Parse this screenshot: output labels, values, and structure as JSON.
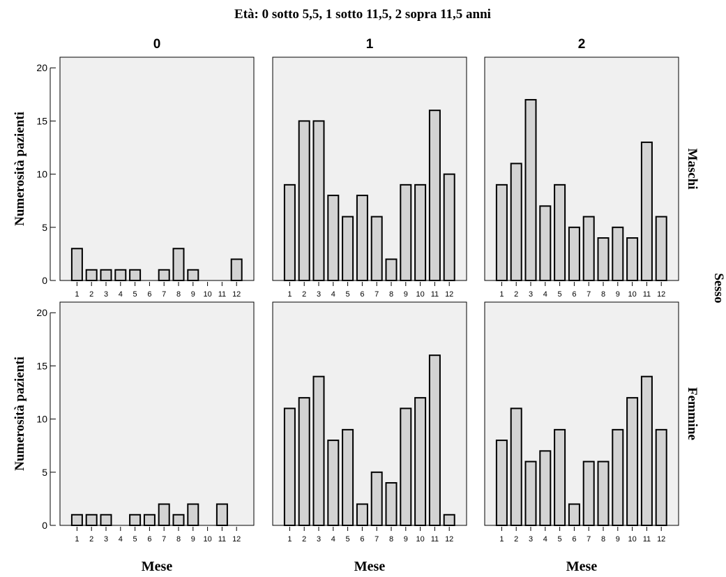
{
  "chart_data": {
    "type": "bar",
    "title": "Età: 0 sotto 5,5, 1 sotto 11,5, 2 sopra 11,5 anni",
    "xlabel": "Mese",
    "ylabel": "Numerosità pazienti",
    "row_facet_title": "Sesso",
    "ylim": [
      0,
      21
    ],
    "yticks": [
      0,
      5,
      10,
      15,
      20
    ],
    "categories": [
      "1",
      "2",
      "3",
      "4",
      "5",
      "6",
      "7",
      "8",
      "9",
      "10",
      "11",
      "12"
    ],
    "columns": [
      "0",
      "1",
      "2"
    ],
    "rows": [
      "Maschi",
      "Femmine"
    ],
    "bar_color": "#d3d3d3",
    "panel_background": "#f0f0f0",
    "panels": [
      {
        "row": "Maschi",
        "col": "0",
        "values": [
          3,
          1,
          1,
          1,
          1,
          0,
          1,
          3,
          1,
          0,
          0,
          2
        ]
      },
      {
        "row": "Maschi",
        "col": "1",
        "values": [
          9,
          15,
          15,
          8,
          6,
          8,
          6,
          2,
          9,
          9,
          16,
          10
        ]
      },
      {
        "row": "Maschi",
        "col": "2",
        "values": [
          9,
          11,
          17,
          7,
          9,
          5,
          6,
          4,
          5,
          4,
          13,
          6
        ]
      },
      {
        "row": "Femmine",
        "col": "0",
        "values": [
          1,
          1,
          1,
          0,
          1,
          1,
          2,
          1,
          2,
          0,
          2,
          0
        ]
      },
      {
        "row": "Femmine",
        "col": "1",
        "values": [
          11,
          12,
          14,
          8,
          9,
          2,
          5,
          4,
          11,
          12,
          16,
          1
        ]
      },
      {
        "row": "Femmine",
        "col": "2",
        "values": [
          8,
          11,
          6,
          7,
          9,
          2,
          6,
          6,
          9,
          12,
          14,
          9
        ]
      }
    ]
  }
}
